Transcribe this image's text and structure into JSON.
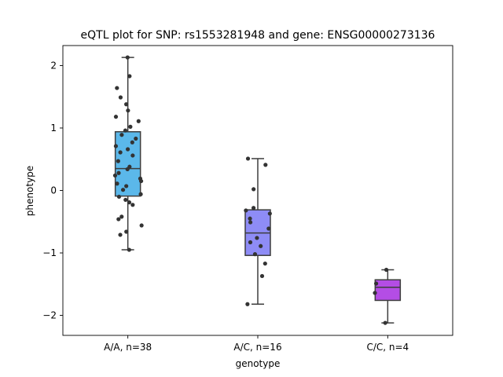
{
  "chart_data": {
    "type": "box",
    "title": "eQTL plot for SNP: rs1553281948 and gene: ENSG00000273136",
    "xlabel": "genotype",
    "ylabel": "phenotype",
    "ylim": [
      -2.32,
      2.32
    ],
    "yticks": [
      -2,
      -1,
      0,
      1,
      2
    ],
    "ytick_labels": [
      "−2",
      "−1",
      "0",
      "1",
      "2"
    ],
    "categories": [
      "A/A, n=38",
      "A/C, n=16",
      "C/C, n=4"
    ],
    "grid": false,
    "boxes": [
      {
        "category": "A/A, n=38",
        "color": "#5bb8ea",
        "q1": -0.09,
        "median": 0.35,
        "q3": 0.94,
        "whisker_low": -0.95,
        "whisker_high": 2.13
      },
      {
        "category": "A/C, n=16",
        "color": "#8e8cf6",
        "q1": -1.04,
        "median": -0.68,
        "q3": -0.31,
        "whisker_low": -1.82,
        "whisker_high": 0.51
      },
      {
        "category": "C/C, n=4",
        "color": "#b44de5",
        "q1": -1.76,
        "median": -1.55,
        "q3": -1.43,
        "whisker_low": -2.12,
        "whisker_high": -1.27
      }
    ],
    "points": [
      {
        "category": "A/A, n=38",
        "values": [
          2.13,
          1.83,
          1.64,
          1.49,
          1.38,
          1.28,
          1.18,
          1.11,
          1.02,
          0.96,
          0.89,
          0.83,
          0.77,
          0.71,
          0.66,
          0.61,
          0.56,
          0.47,
          0.38,
          0.34,
          0.28,
          0.24,
          0.19,
          0.15,
          0.11,
          0.07,
          -0.06,
          -0.1,
          -0.15,
          -0.19,
          -0.23,
          -0.42,
          -0.46,
          -0.56,
          -0.66,
          -0.71,
          -0.95,
          0.01
        ]
      },
      {
        "category": "A/C, n=16",
        "values": [
          0.51,
          0.41,
          0.02,
          -0.28,
          -0.32,
          -0.37,
          -0.51,
          -0.61,
          -0.76,
          -0.83,
          -0.89,
          -1.02,
          -1.17,
          -1.37,
          -1.82,
          -0.45
        ]
      },
      {
        "category": "C/C, n=4",
        "values": [
          -1.27,
          -1.49,
          -1.64,
          -2.12
        ]
      }
    ]
  }
}
